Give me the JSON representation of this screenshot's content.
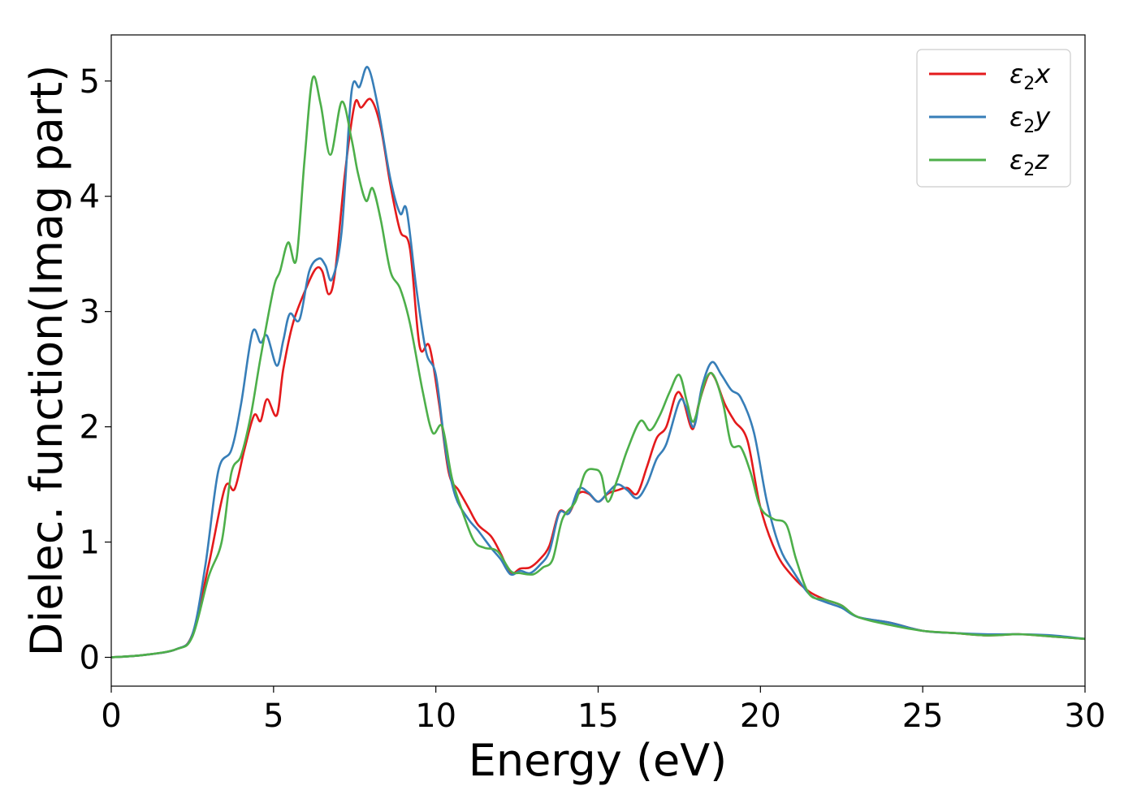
{
  "chart_data": {
    "type": "line",
    "title": "",
    "xlabel": "Energy (eV)",
    "ylabel": "Dielec. function(Imag part)",
    "xlim": [
      0,
      30
    ],
    "ylim": [
      -0.25,
      5.4
    ],
    "xticks": [
      0,
      5,
      10,
      15,
      20,
      25,
      30
    ],
    "yticks": [
      0,
      1,
      2,
      3,
      4,
      5
    ],
    "xtick_labels": [
      "0",
      "5",
      "10",
      "15",
      "20",
      "25",
      "30"
    ],
    "ytick_labels": [
      "0",
      "1",
      "2",
      "3",
      "4",
      "5"
    ],
    "grid": false,
    "legend_position": "top-right",
    "series": [
      {
        "name": "ε2x",
        "legend_main": "ε",
        "legend_sub": "2",
        "legend_suffix": "x",
        "color": "#e41a1c",
        "points": [
          [
            0,
            0
          ],
          [
            1,
            0.02
          ],
          [
            2,
            0.07
          ],
          [
            2.5,
            0.2
          ],
          [
            3,
            0.8
          ],
          [
            3.5,
            1.47
          ],
          [
            3.8,
            1.46
          ],
          [
            4.1,
            1.8
          ],
          [
            4.4,
            2.1
          ],
          [
            4.6,
            2.05
          ],
          [
            4.8,
            2.24
          ],
          [
            5.1,
            2.1
          ],
          [
            5.3,
            2.5
          ],
          [
            5.6,
            2.9
          ],
          [
            6,
            3.2
          ],
          [
            6.3,
            3.37
          ],
          [
            6.5,
            3.35
          ],
          [
            6.7,
            3.15
          ],
          [
            6.9,
            3.35
          ],
          [
            7.2,
            4.2
          ],
          [
            7.5,
            4.8
          ],
          [
            7.7,
            4.77
          ],
          [
            8,
            4.84
          ],
          [
            8.3,
            4.6
          ],
          [
            8.6,
            4.1
          ],
          [
            8.9,
            3.7
          ],
          [
            9.2,
            3.55
          ],
          [
            9.5,
            2.7
          ],
          [
            9.8,
            2.7
          ],
          [
            10.1,
            2.2
          ],
          [
            10.4,
            1.6
          ],
          [
            10.7,
            1.45
          ],
          [
            11,
            1.3
          ],
          [
            11.3,
            1.15
          ],
          [
            11.7,
            1.05
          ],
          [
            12,
            0.9
          ],
          [
            12.3,
            0.73
          ],
          [
            12.6,
            0.77
          ],
          [
            12.9,
            0.78
          ],
          [
            13.2,
            0.85
          ],
          [
            13.5,
            0.97
          ],
          [
            13.8,
            1.26
          ],
          [
            14.1,
            1.25
          ],
          [
            14.4,
            1.42
          ],
          [
            14.7,
            1.42
          ],
          [
            15,
            1.35
          ],
          [
            15.3,
            1.42
          ],
          [
            15.6,
            1.45
          ],
          [
            15.9,
            1.47
          ],
          [
            16.2,
            1.42
          ],
          [
            16.5,
            1.65
          ],
          [
            16.8,
            1.9
          ],
          [
            17.1,
            2.0
          ],
          [
            17.4,
            2.28
          ],
          [
            17.6,
            2.25
          ],
          [
            17.9,
            1.98
          ],
          [
            18.1,
            2.2
          ],
          [
            18.4,
            2.45
          ],
          [
            18.6,
            2.42
          ],
          [
            18.9,
            2.2
          ],
          [
            19.2,
            2.05
          ],
          [
            19.6,
            1.88
          ],
          [
            20,
            1.3
          ],
          [
            20.5,
            0.9
          ],
          [
            21,
            0.7
          ],
          [
            21.5,
            0.57
          ],
          [
            22,
            0.5
          ],
          [
            22.5,
            0.45
          ],
          [
            23,
            0.35
          ],
          [
            24,
            0.3
          ],
          [
            25,
            0.23
          ],
          [
            26,
            0.21
          ],
          [
            27,
            0.19
          ],
          [
            28,
            0.2
          ],
          [
            29,
            0.18
          ],
          [
            30,
            0.16
          ]
        ]
      },
      {
        "name": "ε2y",
        "legend_main": "ε",
        "legend_sub": "2",
        "legend_suffix": "y",
        "color": "#377eb8",
        "points": [
          [
            0,
            0
          ],
          [
            1,
            0.02
          ],
          [
            2,
            0.07
          ],
          [
            2.5,
            0.2
          ],
          [
            2.9,
            0.8
          ],
          [
            3.3,
            1.62
          ],
          [
            3.7,
            1.8
          ],
          [
            4,
            2.2
          ],
          [
            4.35,
            2.82
          ],
          [
            4.6,
            2.73
          ],
          [
            4.8,
            2.79
          ],
          [
            5.1,
            2.53
          ],
          [
            5.3,
            2.75
          ],
          [
            5.5,
            2.98
          ],
          [
            5.8,
            2.93
          ],
          [
            6.1,
            3.35
          ],
          [
            6.4,
            3.46
          ],
          [
            6.6,
            3.4
          ],
          [
            6.8,
            3.28
          ],
          [
            7.1,
            3.7
          ],
          [
            7.4,
            4.9
          ],
          [
            7.65,
            4.95
          ],
          [
            7.9,
            5.12
          ],
          [
            8.2,
            4.8
          ],
          [
            8.6,
            4.15
          ],
          [
            8.9,
            3.85
          ],
          [
            9.1,
            3.88
          ],
          [
            9.4,
            3.2
          ],
          [
            9.7,
            2.65
          ],
          [
            10,
            2.45
          ],
          [
            10.3,
            1.8
          ],
          [
            10.6,
            1.4
          ],
          [
            11,
            1.2
          ],
          [
            11.3,
            1.1
          ],
          [
            11.7,
            0.95
          ],
          [
            12,
            0.85
          ],
          [
            12.3,
            0.72
          ],
          [
            12.6,
            0.75
          ],
          [
            12.9,
            0.73
          ],
          [
            13.2,
            0.8
          ],
          [
            13.5,
            0.92
          ],
          [
            13.8,
            1.25
          ],
          [
            14.1,
            1.25
          ],
          [
            14.4,
            1.46
          ],
          [
            14.7,
            1.43
          ],
          [
            15,
            1.35
          ],
          [
            15.3,
            1.43
          ],
          [
            15.6,
            1.5
          ],
          [
            15.9,
            1.45
          ],
          [
            16.2,
            1.38
          ],
          [
            16.5,
            1.5
          ],
          [
            16.8,
            1.72
          ],
          [
            17.1,
            1.85
          ],
          [
            17.5,
            2.22
          ],
          [
            17.7,
            2.18
          ],
          [
            17.95,
            2.0
          ],
          [
            18.2,
            2.35
          ],
          [
            18.5,
            2.56
          ],
          [
            18.8,
            2.45
          ],
          [
            19.1,
            2.32
          ],
          [
            19.4,
            2.25
          ],
          [
            19.8,
            1.95
          ],
          [
            20.2,
            1.35
          ],
          [
            20.6,
            0.95
          ],
          [
            21,
            0.75
          ],
          [
            21.5,
            0.55
          ],
          [
            22,
            0.48
          ],
          [
            22.5,
            0.43
          ],
          [
            23,
            0.35
          ],
          [
            24,
            0.3
          ],
          [
            25,
            0.23
          ],
          [
            26,
            0.21
          ],
          [
            27,
            0.2
          ],
          [
            28,
            0.2
          ],
          [
            29,
            0.19
          ],
          [
            30,
            0.16
          ]
        ]
      },
      {
        "name": "ε2z",
        "legend_main": "ε",
        "legend_sub": "2",
        "legend_suffix": "z",
        "color": "#4daf4a",
        "points": [
          [
            0,
            0
          ],
          [
            1,
            0.02
          ],
          [
            2,
            0.07
          ],
          [
            2.5,
            0.18
          ],
          [
            3,
            0.7
          ],
          [
            3.4,
            1.0
          ],
          [
            3.7,
            1.6
          ],
          [
            4,
            1.75
          ],
          [
            4.3,
            2.1
          ],
          [
            4.6,
            2.6
          ],
          [
            5,
            3.2
          ],
          [
            5.2,
            3.35
          ],
          [
            5.45,
            3.6
          ],
          [
            5.7,
            3.45
          ],
          [
            5.95,
            4.3
          ],
          [
            6.2,
            5.02
          ],
          [
            6.45,
            4.8
          ],
          [
            6.75,
            4.36
          ],
          [
            7.1,
            4.82
          ],
          [
            7.4,
            4.5
          ],
          [
            7.6,
            4.2
          ],
          [
            7.85,
            3.96
          ],
          [
            8.05,
            4.07
          ],
          [
            8.3,
            3.8
          ],
          [
            8.6,
            3.35
          ],
          [
            8.9,
            3.2
          ],
          [
            9.2,
            2.9
          ],
          [
            9.6,
            2.3
          ],
          [
            9.9,
            1.95
          ],
          [
            10.2,
            2.0
          ],
          [
            10.5,
            1.55
          ],
          [
            10.9,
            1.2
          ],
          [
            11.2,
            1.0
          ],
          [
            11.5,
            0.95
          ],
          [
            11.9,
            0.92
          ],
          [
            12.3,
            0.75
          ],
          [
            12.6,
            0.73
          ],
          [
            13,
            0.72
          ],
          [
            13.3,
            0.78
          ],
          [
            13.6,
            0.85
          ],
          [
            13.9,
            1.2
          ],
          [
            14.3,
            1.35
          ],
          [
            14.6,
            1.6
          ],
          [
            14.9,
            1.63
          ],
          [
            15.1,
            1.58
          ],
          [
            15.3,
            1.35
          ],
          [
            15.6,
            1.55
          ],
          [
            15.9,
            1.8
          ],
          [
            16.3,
            2.05
          ],
          [
            16.6,
            1.97
          ],
          [
            16.9,
            2.1
          ],
          [
            17.2,
            2.3
          ],
          [
            17.5,
            2.45
          ],
          [
            17.75,
            2.2
          ],
          [
            17.95,
            2.05
          ],
          [
            18.3,
            2.4
          ],
          [
            18.55,
            2.45
          ],
          [
            18.85,
            2.2
          ],
          [
            19.1,
            1.85
          ],
          [
            19.4,
            1.82
          ],
          [
            19.7,
            1.6
          ],
          [
            20,
            1.3
          ],
          [
            20.4,
            1.2
          ],
          [
            20.8,
            1.15
          ],
          [
            21.1,
            0.85
          ],
          [
            21.5,
            0.55
          ],
          [
            22,
            0.5
          ],
          [
            22.5,
            0.45
          ],
          [
            23,
            0.35
          ],
          [
            24,
            0.28
          ],
          [
            25,
            0.23
          ],
          [
            26,
            0.21
          ],
          [
            27,
            0.19
          ],
          [
            28,
            0.2
          ],
          [
            29,
            0.18
          ],
          [
            30,
            0.16
          ]
        ]
      }
    ]
  }
}
